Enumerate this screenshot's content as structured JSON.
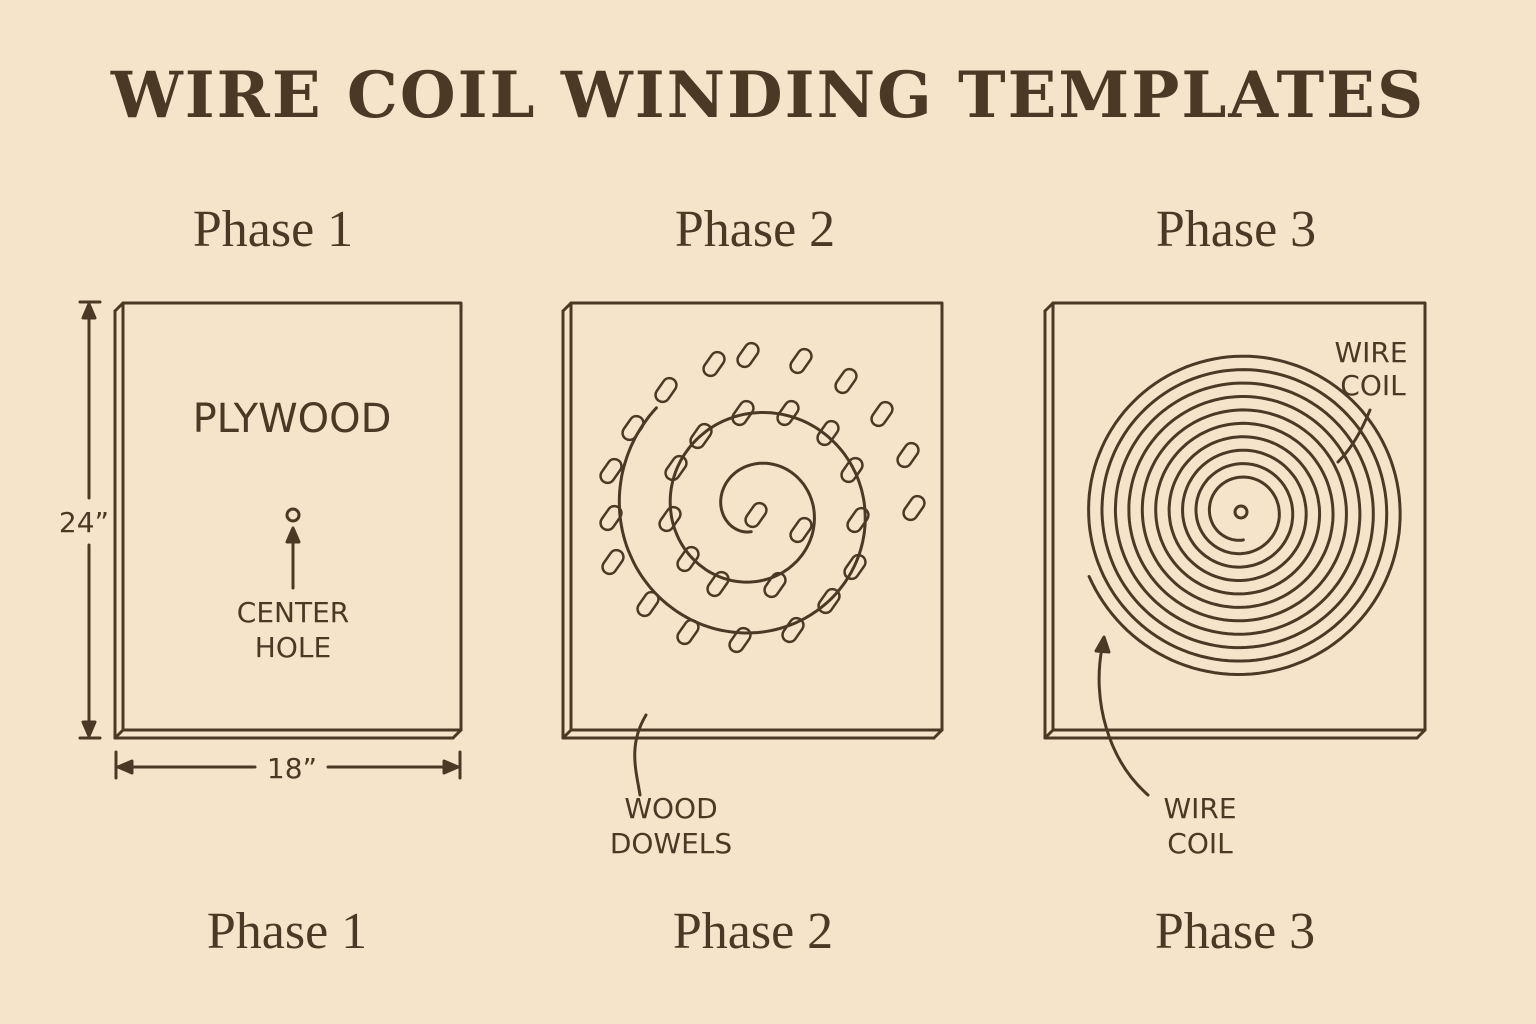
{
  "title": "WIRE COIL WINDING TEMPLATES",
  "phases_top": [
    "Phase 1",
    "Phase 2",
    "Phase 3"
  ],
  "phases_bottom": [
    "Phase 1",
    "Phase 2",
    "Phase 3"
  ],
  "panel1": {
    "material_label": "PLYWOOD",
    "hole_label_line1": "CENTER",
    "hole_label_line2": "HOLE",
    "height_label": "24”",
    "width_label": "18”"
  },
  "panel2": {
    "callout_line1": "WOOD",
    "callout_line2": "DOWELS"
  },
  "panel3": {
    "coil_label_line1": "WIRE",
    "coil_label_line2": "COIL",
    "callout_line1": "WIRE",
    "callout_line2": "COIL"
  },
  "colors": {
    "background": "#f5e4c9",
    "ink": "#4a3a25"
  }
}
